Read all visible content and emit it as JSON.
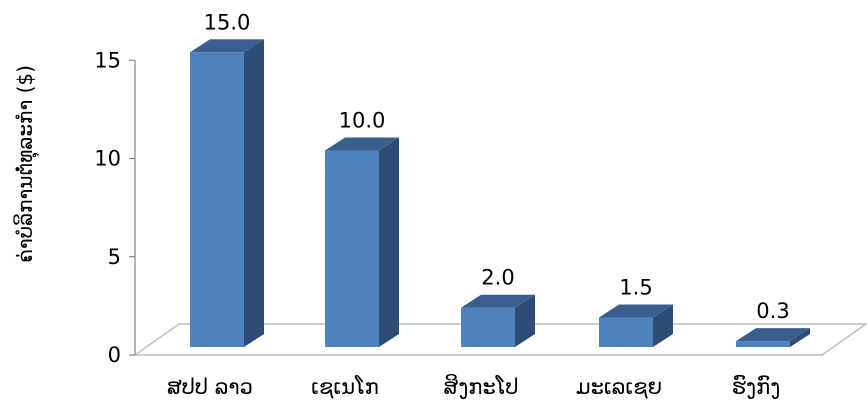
{
  "chart_data": {
    "type": "bar",
    "title": "",
    "xlabel": "",
    "ylabel": "ຄ່າບໍລິການຕໍ່ທຸລະກຳ ($)",
    "categories": [
      "ສປປ ລາວ",
      "ເຊເນໂກ",
      "ສິງກະໂປ",
      "ມະເລເຊຍ",
      "ຮົງກົງ"
    ],
    "values": [
      15.0,
      10.0,
      2.0,
      1.5,
      0.3
    ],
    "value_labels": [
      "15.0",
      "10.0",
      "2.0",
      "1.5",
      "0.3"
    ],
    "ylim": [
      0,
      15
    ],
    "yticks": [
      "0",
      "5",
      "10",
      "15"
    ],
    "grid": false,
    "legend": "none",
    "style": "3d",
    "colors": {
      "bar_front": "#4f81bd",
      "bar_side": "#2c4d75",
      "bar_top": "#3a5f8f",
      "floor": "#bfbfbf"
    }
  }
}
